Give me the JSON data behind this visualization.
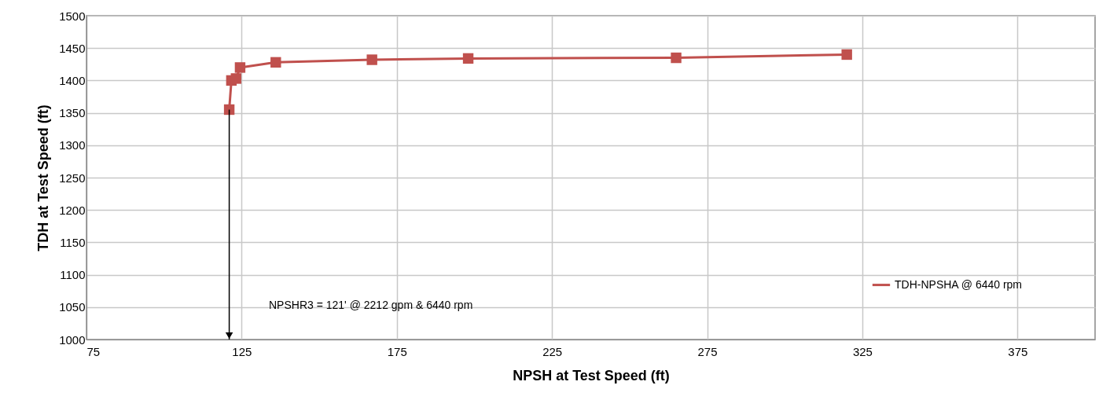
{
  "chart_data": {
    "type": "line",
    "xlabel": "NPSH at Test Speed (ft)",
    "ylabel": "TDH at Test Speed (ft)",
    "x": [
      121,
      121.7,
      123.2,
      124.5,
      136,
      167,
      198,
      265,
      320
    ],
    "series": [
      {
        "name": "TDH-NPSHA @ 6440 rpm",
        "color": "#c0504d",
        "values": [
          1355,
          1400,
          1403,
          1420,
          1428,
          1432,
          1434,
          1435,
          1440
        ]
      }
    ],
    "xlim": [
      75,
      400
    ],
    "xticks": [
      75,
      125,
      175,
      225,
      275,
      325,
      375
    ],
    "ylim": [
      1000,
      1500
    ],
    "yticks": [
      1000,
      1050,
      1100,
      1150,
      1200,
      1250,
      1300,
      1350,
      1400,
      1450,
      1500
    ],
    "annotations": [
      "NPSHR3 = 121' @ 2212 gpm & 6440 rpm"
    ],
    "grid": true,
    "legend": "right",
    "marker": "square",
    "line_style": "solid"
  }
}
